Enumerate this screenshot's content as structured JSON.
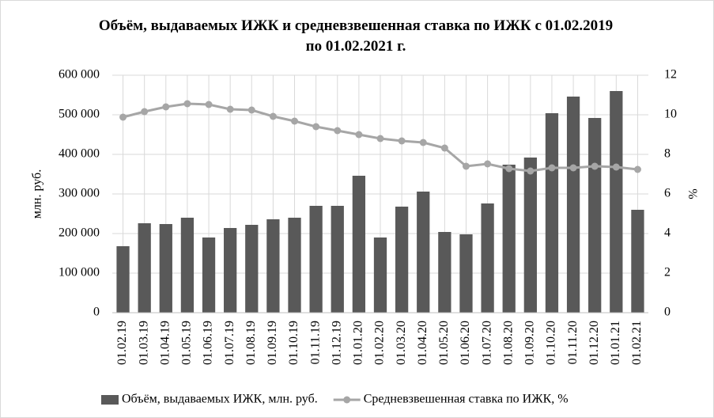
{
  "chart_data": {
    "type": "bar_line",
    "title": "Объём, выдаваемых ИЖК и средневзвешенная ставка по ИЖК с 01.02.2019 по 01.02.2021 г.",
    "ylabel": "млн. руб.",
    "y2label": "%",
    "categories": [
      "01.02.19",
      "01.03.19",
      "01.04.19",
      "01.05.19",
      "01.06.19",
      "01.07.19",
      "01.08.19",
      "01.09.19",
      "01.10.19",
      "01.11.19",
      "01.12.19",
      "01.01.20",
      "01.02.20",
      "01.03.20",
      "01.04.20",
      "01.05.20",
      "01.06.20",
      "01.07.20",
      "01.08.20",
      "01.09.20",
      "01.10.20",
      "01.11.20",
      "01.12.20",
      "01.01.21",
      "01.02.21"
    ],
    "series": [
      {
        "name": "Объём, выдаваемых ИЖК, млн. руб.",
        "color": "#595959",
        "kind": "bar",
        "values": [
          168000,
          226000,
          224000,
          240000,
          190000,
          214000,
          222000,
          236000,
          240000,
          270000,
          270000,
          346000,
          190000,
          268000,
          306000,
          204000,
          198000,
          276000,
          374000,
          392000,
          504000,
          546000,
          492000,
          560000,
          260000
        ]
      },
      {
        "name": "Средневзвешенная ставка по ИЖК, %",
        "color": "#a6a6a6",
        "kind": "line",
        "axis": "y2",
        "values": [
          9.88,
          10.16,
          10.4,
          10.56,
          10.52,
          10.28,
          10.24,
          9.92,
          9.68,
          9.4,
          9.2,
          9.0,
          8.8,
          8.68,
          8.6,
          8.32,
          7.4,
          7.52,
          7.28,
          7.16,
          7.32,
          7.32,
          7.4,
          7.36,
          7.24
        ]
      }
    ],
    "ylim": [
      0,
      600000
    ],
    "yticks": [
      0,
      {
        "value": 100000,
        "label": "100 000"
      },
      {
        "value": 200000,
        "label": "200 000"
      },
      {
        "value": 300000,
        "label": "300 000"
      },
      {
        "value": 400000,
        "label": "400 000"
      },
      {
        "value": 500000,
        "label": "500 000"
      },
      {
        "value": 600000,
        "label": "600 000"
      }
    ],
    "y2lim": [
      0,
      12
    ],
    "y2ticks": [
      0,
      2,
      4,
      6,
      8,
      10,
      12
    ],
    "grid": true,
    "legend": "bottom"
  }
}
